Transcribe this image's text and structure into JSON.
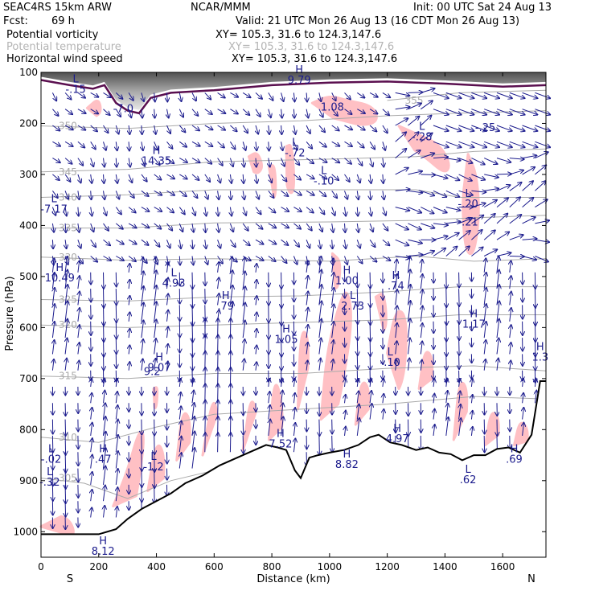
{
  "header": {
    "model": "SEAC4RS 15km ARW",
    "org": "NCAR/MMM",
    "init": "Init: 00 UTC Sat 24 Aug 13",
    "fcst_label": "Fcst:",
    "fcst_value": "69 h",
    "valid": "Valid: 21 UTC Mon 26 Aug 13 (16 CDT Mon 26 Aug 13)",
    "fields": [
      {
        "name": "Potential vorticity",
        "xy": "XY= 105.3, 31.6 to 124.3,147.6"
      },
      {
        "name": "Potential temperature",
        "xy": "XY= 105.3, 31.6 to 124.3,147.6"
      },
      {
        "name": "Horizontal wind speed",
        "xy": "XY= 105.3, 31.6 to 124.3,147.6"
      }
    ]
  },
  "colors": {
    "pv_fill": "#ffc0c4",
    "terrain": "#000000",
    "isentrope": "#aaaaaa",
    "wind": "#1a1a8c",
    "tropopause": "#5a0f4f",
    "field_label": "#1a1a8c"
  },
  "chart_data": {
    "type": "cross-section",
    "xlabel": "Distance (km)",
    "ylabel": "Pressure (hPa)",
    "xlim": [
      0,
      1750
    ],
    "ylim": [
      1050,
      100
    ],
    "x_ticks": [
      "0",
      "200",
      "400",
      "600",
      "800",
      "1000",
      "1200",
      "1400",
      "1600"
    ],
    "y_ticks": [
      "100",
      "200",
      "300",
      "400",
      "500",
      "600",
      "700",
      "800",
      "900",
      "1000"
    ],
    "x_end_labels": {
      "left": "S",
      "right": "N"
    },
    "isentropes": [
      {
        "label": "305",
        "points": [
          [
            0,
            895
          ],
          [
            150,
            905
          ],
          [
            300,
            935
          ],
          [
            450,
            900
          ],
          [
            600,
            880
          ],
          [
            800,
            860
          ]
        ]
      },
      {
        "label": "310",
        "points": [
          [
            0,
            815
          ],
          [
            200,
            825
          ],
          [
            400,
            795
          ],
          [
            600,
            770
          ],
          [
            900,
            760
          ],
          [
            1200,
            750
          ],
          [
            1500,
            735
          ],
          [
            1750,
            740
          ]
        ]
      },
      {
        "label": "315",
        "points": [
          [
            0,
            695
          ],
          [
            300,
            700
          ],
          [
            600,
            690
          ],
          [
            900,
            690
          ],
          [
            1200,
            680
          ],
          [
            1500,
            675
          ],
          [
            1750,
            685
          ]
        ]
      },
      {
        "label": "320",
        "points": [
          [
            0,
            595
          ],
          [
            300,
            600
          ],
          [
            600,
            595
          ],
          [
            900,
            590
          ],
          [
            1200,
            585
          ],
          [
            1450,
            575
          ],
          [
            1750,
            575
          ]
        ]
      },
      {
        "label": "325",
        "points": [
          [
            0,
            545
          ],
          [
            300,
            548
          ],
          [
            600,
            540
          ],
          [
            900,
            538
          ],
          [
            1200,
            530
          ],
          [
            1450,
            520
          ],
          [
            1750,
            520
          ]
        ]
      },
      {
        "label": "330",
        "points": [
          [
            0,
            462
          ],
          [
            300,
            468
          ],
          [
            600,
            465
          ],
          [
            1000,
            470
          ],
          [
            1300,
            460
          ],
          [
            1500,
            470
          ],
          [
            1750,
            465
          ]
        ]
      },
      {
        "label": "335",
        "points": [
          [
            0,
            405
          ],
          [
            300,
            405
          ],
          [
            600,
            395
          ],
          [
            1000,
            393
          ],
          [
            1300,
            390
          ],
          [
            1500,
            385
          ],
          [
            1750,
            380
          ]
        ]
      },
      {
        "label": "340",
        "points": [
          [
            0,
            345
          ],
          [
            300,
            340
          ],
          [
            600,
            330
          ],
          [
            1000,
            330
          ],
          [
            1300,
            330
          ],
          [
            1450,
            345
          ],
          [
            1750,
            345
          ]
        ]
      },
      {
        "label": "345",
        "points": [
          [
            0,
            295
          ],
          [
            300,
            290
          ],
          [
            600,
            275
          ],
          [
            1000,
            270
          ],
          [
            1300,
            265
          ],
          [
            1500,
            255
          ],
          [
            1750,
            250
          ]
        ]
      },
      {
        "label": "350",
        "points": [
          [
            0,
            205
          ],
          [
            300,
            210
          ],
          [
            600,
            200
          ],
          [
            900,
            195
          ],
          [
            1200,
            185
          ],
          [
            1450,
            180
          ],
          [
            1750,
            175
          ]
        ]
      },
      {
        "label": "355",
        "points": [
          [
            1200,
            155
          ],
          [
            1450,
            140
          ],
          [
            1750,
            135
          ]
        ]
      }
    ],
    "hl_labels": [
      {
        "t": "L",
        "v": "-.15",
        "x": 120,
        "p": 140
      },
      {
        "t": "",
        "v": "-7.0",
        "x": 285,
        "p": 178
      },
      {
        "t": "H",
        "v": "9.79",
        "x": 895,
        "p": 122
      },
      {
        "t": "",
        "v": "1.08",
        "x": 1010,
        "p": 175
      },
      {
        "t": "L",
        "v": "-.28",
        "x": 1320,
        "p": 233
      },
      {
        "t": "",
        "v": "-.25",
        "x": 1540,
        "p": 215
      },
      {
        "t": "H",
        "v": "14.35",
        "x": 400,
        "p": 280
      },
      {
        "t": "L",
        "v": "-.72",
        "x": 880,
        "p": 265
      },
      {
        "t": "L",
        "v": "-.10",
        "x": 980,
        "p": 320
      },
      {
        "t": "L",
        "v": "-.20",
        "x": 1480,
        "p": 365
      },
      {
        "t": "",
        "v": "-.21",
        "x": 1480,
        "p": 400
      },
      {
        "t": "L",
        "v": "-7.17",
        "x": 45,
        "p": 375
      },
      {
        "t": "H",
        "v": "10.49",
        "x": 65,
        "p": 510
      },
      {
        "t": "L",
        "v": "4.93",
        "x": 460,
        "p": 520
      },
      {
        "t": "H",
        "v": "1.00",
        "x": 1060,
        "p": 515
      },
      {
        "t": "H",
        "v": ".74",
        "x": 1230,
        "p": 525
      },
      {
        "t": "H",
        "v": ".79",
        "x": 640,
        "p": 565
      },
      {
        "t": "L",
        "v": "2.73",
        "x": 1080,
        "p": 565
      },
      {
        "t": "H",
        "v": "1.17",
        "x": 1500,
        "p": 600
      },
      {
        "t": "H",
        "v": "1.05",
        "x": 850,
        "p": 630
      },
      {
        "t": "L",
        "v": "-.10",
        "x": 1210,
        "p": 675
      },
      {
        "t": "H",
        "v": "9.07",
        "x": 410,
        "p": 685
      },
      {
        "t": "",
        "v": "9.2",
        "x": 385,
        "p": 693
      },
      {
        "t": "H",
        "v": "1.3",
        "x": 1730,
        "p": 665
      },
      {
        "t": "H",
        "v": "7.52",
        "x": 830,
        "p": 835
      },
      {
        "t": "H",
        "v": "8.82",
        "x": 1060,
        "p": 875
      },
      {
        "t": "H",
        "v": "4.97",
        "x": 1235,
        "p": 825
      },
      {
        "t": "L",
        "v": "-.02",
        "x": 35,
        "p": 865
      },
      {
        "t": "H",
        "v": ".47",
        "x": 215,
        "p": 865
      },
      {
        "t": "L",
        "v": "-1.2",
        "x": 390,
        "p": 880
      },
      {
        "t": "L",
        "v": "-.32",
        "x": 30,
        "p": 910
      },
      {
        "t": "L",
        "v": ".62",
        "x": 1480,
        "p": 905
      },
      {
        "t": "H",
        "v": ".69",
        "x": 1640,
        "p": 865
      },
      {
        "t": "H",
        "v": "8.12",
        "x": 215,
        "p": 1045
      }
    ]
  }
}
